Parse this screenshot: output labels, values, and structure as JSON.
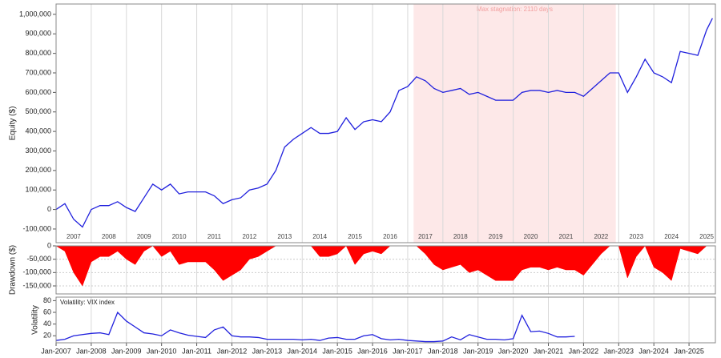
{
  "chart_data": [
    {
      "type": "line",
      "ylabel": "Equity ($)",
      "x": [
        "2007-01",
        "2007-04",
        "2007-07",
        "2007-10",
        "2008-01",
        "2008-04",
        "2008-07",
        "2008-10",
        "2009-01",
        "2009-04",
        "2009-07",
        "2009-10",
        "2010-01",
        "2010-04",
        "2010-07",
        "2010-10",
        "2011-01",
        "2011-04",
        "2011-07",
        "2011-10",
        "2012-01",
        "2012-04",
        "2012-07",
        "2012-10",
        "2013-01",
        "2013-04",
        "2013-07",
        "2013-10",
        "2014-01",
        "2014-04",
        "2014-07",
        "2014-10",
        "2015-01",
        "2015-04",
        "2015-07",
        "2015-10",
        "2016-01",
        "2016-04",
        "2016-07",
        "2016-10",
        "2017-01",
        "2017-04",
        "2017-07",
        "2017-10",
        "2018-01",
        "2018-04",
        "2018-07",
        "2018-10",
        "2019-01",
        "2019-04",
        "2019-07",
        "2019-10",
        "2020-01",
        "2020-04",
        "2020-07",
        "2020-10",
        "2021-01",
        "2021-04",
        "2021-07",
        "2021-10",
        "2022-01",
        "2022-04",
        "2022-07",
        "2022-10",
        "2023-01",
        "2023-04",
        "2023-07",
        "2023-10",
        "2024-01",
        "2024-04",
        "2024-07",
        "2024-10",
        "2025-01",
        "2025-04",
        "2025-07",
        "2025-09"
      ],
      "series": [
        {
          "name": "Equity",
          "color": "#2020dd",
          "values": [
            0,
            30000,
            -50000,
            -90000,
            0,
            20000,
            20000,
            40000,
            10000,
            -10000,
            60000,
            130000,
            100000,
            130000,
            80000,
            90000,
            90000,
            90000,
            70000,
            30000,
            50000,
            60000,
            100000,
            110000,
            130000,
            200000,
            320000,
            360000,
            390000,
            420000,
            390000,
            390000,
            400000,
            470000,
            410000,
            450000,
            460000,
            450000,
            500000,
            610000,
            630000,
            680000,
            660000,
            620000,
            600000,
            610000,
            620000,
            590000,
            600000,
            580000,
            560000,
            560000,
            560000,
            600000,
            610000,
            610000,
            600000,
            610000,
            600000,
            600000,
            580000,
            620000,
            660000,
            700000,
            700000,
            600000,
            680000,
            770000,
            700000,
            680000,
            650000,
            810000,
            800000,
            790000,
            920000,
            980000
          ]
        }
      ],
      "xlim": [
        "2007-01",
        "2025-10"
      ],
      "ylim": [
        -170000,
        1053000
      ],
      "yticks": [
        {
          "value": -100000,
          "label": "-100,000"
        },
        0,
        {
          "value": 100000,
          "label": "100,000"
        },
        {
          "value": 200000,
          "label": "200,000"
        },
        {
          "value": 300000,
          "label": "300,000"
        },
        {
          "value": 400000,
          "label": "400,000"
        },
        {
          "value": 500000,
          "label": "500,000"
        },
        {
          "value": 600000,
          "label": "600,000"
        },
        {
          "value": 700000,
          "label": "700,000"
        },
        {
          "value": 800000,
          "label": "800,000"
        },
        {
          "value": 900000,
          "label": "900,000"
        },
        {
          "value": 1000000,
          "label": "1,000,000"
        }
      ],
      "xticks": [
        {
          "value": "2007-07",
          "label": "2007"
        },
        {
          "value": "2008-07",
          "label": "2008"
        },
        {
          "value": "2009-07",
          "label": "2009"
        },
        {
          "value": "2010-07",
          "label": "2010"
        },
        {
          "value": "2011-07",
          "label": "2011"
        },
        {
          "value": "2012-07",
          "label": "2012"
        },
        {
          "value": "2013-07",
          "label": "2013"
        },
        {
          "value": "2014-07",
          "label": "2014"
        },
        {
          "value": "2015-07",
          "label": "2015"
        },
        {
          "value": "2016-07",
          "label": "2016"
        },
        {
          "value": "2017-07",
          "label": "2017"
        },
        {
          "value": "2018-07",
          "label": "2018"
        },
        {
          "value": "2019-07",
          "label": "2019"
        },
        {
          "value": "2020-07",
          "label": "2020"
        },
        {
          "value": "2021-07",
          "label": "2021"
        },
        {
          "value": "2022-07",
          "label": "2022"
        },
        {
          "value": "2023-07",
          "label": "2023"
        },
        {
          "value": "2024-07",
          "label": "2024"
        },
        {
          "value": "2025-07",
          "label": "2025"
        }
      ],
      "highlight": {
        "start": "2017-03",
        "end": "2022-12",
        "label": "Max stagnation: 2110 days",
        "color": "#fde8e8"
      }
    },
    {
      "type": "area",
      "ylabel": "Drawdown ($)",
      "x": [
        "2007-01",
        "2007-04",
        "2007-07",
        "2007-10",
        "2008-01",
        "2008-04",
        "2008-07",
        "2008-10",
        "2009-01",
        "2009-04",
        "2009-07",
        "2009-10",
        "2010-01",
        "2010-04",
        "2010-07",
        "2010-10",
        "2011-01",
        "2011-04",
        "2011-07",
        "2011-10",
        "2012-01",
        "2012-04",
        "2012-07",
        "2012-10",
        "2013-01",
        "2013-04",
        "2013-07",
        "2013-10",
        "2014-01",
        "2014-04",
        "2014-07",
        "2014-10",
        "2015-01",
        "2015-04",
        "2015-07",
        "2015-10",
        "2016-01",
        "2016-04",
        "2016-07",
        "2016-10",
        "2017-01",
        "2017-04",
        "2017-07",
        "2017-10",
        "2018-01",
        "2018-04",
        "2018-07",
        "2018-10",
        "2019-01",
        "2019-04",
        "2019-07",
        "2019-10",
        "2020-01",
        "2020-04",
        "2020-07",
        "2020-10",
        "2021-01",
        "2021-04",
        "2021-07",
        "2021-10",
        "2022-01",
        "2022-04",
        "2022-07",
        "2022-10",
        "2023-01",
        "2023-04",
        "2023-07",
        "2023-10",
        "2024-01",
        "2024-04",
        "2024-07",
        "2024-10",
        "2025-01",
        "2025-04",
        "2025-07",
        "2025-09"
      ],
      "series": [
        {
          "name": "Drawdown",
          "color": "#ff0000",
          "values": [
            0,
            -20000,
            -100000,
            -150000,
            -60000,
            -40000,
            -40000,
            -20000,
            -50000,
            -70000,
            -20000,
            0,
            -40000,
            -20000,
            -70000,
            -60000,
            -60000,
            -60000,
            -90000,
            -130000,
            -110000,
            -90000,
            -50000,
            -40000,
            -20000,
            0,
            0,
            0,
            0,
            0,
            -40000,
            -40000,
            -30000,
            0,
            -70000,
            -30000,
            -20000,
            -30000,
            0,
            0,
            0,
            0,
            -30000,
            -70000,
            -90000,
            -80000,
            -70000,
            -100000,
            -90000,
            -110000,
            -130000,
            -130000,
            -130000,
            -90000,
            -80000,
            -80000,
            -90000,
            -80000,
            -90000,
            -90000,
            -110000,
            -70000,
            -30000,
            0,
            0,
            -120000,
            -40000,
            0,
            -80000,
            -100000,
            -130000,
            -10000,
            -20000,
            -30000,
            0,
            0
          ]
        }
      ],
      "xlim": [
        "2007-01",
        "2025-10"
      ],
      "ylim": [
        -180000,
        0
      ],
      "yticks": [
        {
          "value": -150000,
          "label": "-150,000"
        },
        {
          "value": -100000,
          "label": "-100,000"
        },
        {
          "value": -50000,
          "label": "-50,000"
        },
        0
      ]
    },
    {
      "type": "line",
      "ylabel": "Volatility",
      "x": [
        "2007-01",
        "2007-04",
        "2007-07",
        "2007-10",
        "2008-01",
        "2008-04",
        "2008-07",
        "2008-10",
        "2009-01",
        "2009-04",
        "2009-07",
        "2009-10",
        "2010-01",
        "2010-04",
        "2010-07",
        "2010-10",
        "2011-01",
        "2011-04",
        "2011-07",
        "2011-10",
        "2012-01",
        "2012-04",
        "2012-07",
        "2012-10",
        "2013-01",
        "2013-04",
        "2013-07",
        "2013-10",
        "2014-01",
        "2014-04",
        "2014-07",
        "2014-10",
        "2015-01",
        "2015-04",
        "2015-07",
        "2015-10",
        "2016-01",
        "2016-04",
        "2016-07",
        "2016-10",
        "2017-01",
        "2017-04",
        "2017-07",
        "2017-10",
        "2018-01",
        "2018-04",
        "2018-07",
        "2018-10",
        "2019-01",
        "2019-04",
        "2019-07",
        "2019-10",
        "2020-01",
        "2020-04",
        "2020-07",
        "2020-10",
        "2021-01",
        "2021-04",
        "2021-07",
        "2021-10"
      ],
      "series": [
        {
          "name": "Volatility: VIX index",
          "color": "#2020dd",
          "values": [
            12,
            14,
            20,
            22,
            24,
            25,
            22,
            60,
            45,
            35,
            25,
            23,
            20,
            30,
            25,
            21,
            19,
            17,
            30,
            35,
            20,
            18,
            18,
            17,
            14,
            14,
            14,
            14,
            13,
            14,
            12,
            16,
            17,
            14,
            14,
            20,
            22,
            15,
            13,
            14,
            12,
            11,
            10,
            10,
            11,
            18,
            13,
            22,
            18,
            14,
            14,
            13,
            15,
            55,
            27,
            28,
            24,
            18,
            18,
            19
          ]
        }
      ],
      "xlim": [
        "2007-01",
        "2025-10"
      ],
      "ylim": [
        8,
        86
      ],
      "yticks": [
        20,
        40,
        60,
        80
      ],
      "xticks": [
        {
          "value": "2007-01",
          "label": "Jan-2007"
        },
        {
          "value": "2008-01",
          "label": "Jan-2008"
        },
        {
          "value": "2009-01",
          "label": "Jan-2009"
        },
        {
          "value": "2010-01",
          "label": "Jan-2010"
        },
        {
          "value": "2011-01",
          "label": "Jan-2011"
        },
        {
          "value": "2012-01",
          "label": "Jan-2012"
        },
        {
          "value": "2013-01",
          "label": "Jan-2013"
        },
        {
          "value": "2014-01",
          "label": "Jan-2014"
        },
        {
          "value": "2015-01",
          "label": "Jan-2015"
        },
        {
          "value": "2016-01",
          "label": "Jan-2016"
        },
        {
          "value": "2017-01",
          "label": "Jan-2017"
        },
        {
          "value": "2018-01",
          "label": "Jan-2018"
        },
        {
          "value": "2019-01",
          "label": "Jan-2019"
        },
        {
          "value": "2020-01",
          "label": "Jan-2020"
        },
        {
          "value": "2021-01",
          "label": "Jan-2021"
        },
        {
          "value": "2022-01",
          "label": "Jan-2022"
        },
        {
          "value": "2023-01",
          "label": "Jan-2023"
        },
        {
          "value": "2024-01",
          "label": "Jan-2024"
        },
        {
          "value": "2025-01",
          "label": "Jan-2025"
        }
      ]
    }
  ]
}
